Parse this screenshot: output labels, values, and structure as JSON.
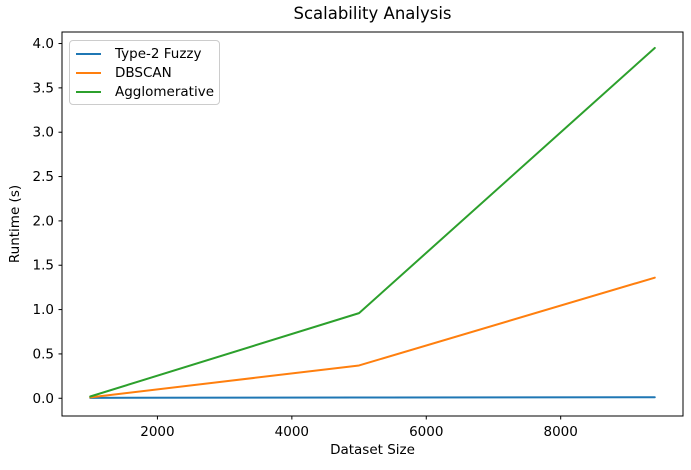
{
  "chart_data": {
    "type": "line",
    "title": "Scalability Analysis",
    "xlabel": "Dataset Size",
    "ylabel": "Runtime (s)",
    "x": [
      1000,
      5000,
      9400
    ],
    "series": [
      {
        "name": "Type-2 Fuzzy",
        "color": "#1f77b4",
        "values": [
          0.005,
          0.008,
          0.012
        ]
      },
      {
        "name": "DBSCAN",
        "color": "#ff7f0e",
        "values": [
          0.01,
          0.37,
          1.36
        ]
      },
      {
        "name": "Agglomerative",
        "color": "#2ca02c",
        "values": [
          0.02,
          0.96,
          3.95
        ]
      }
    ],
    "xticks": [
      2000,
      4000,
      6000,
      8000
    ],
    "yticks": [
      0.0,
      0.5,
      1.0,
      1.5,
      2.0,
      2.5,
      3.0,
      3.5,
      4.0
    ],
    "xlim": [
      580,
      9820
    ],
    "ylim": [
      -0.2,
      4.13
    ],
    "legend_position": "upper left",
    "grid": false,
    "colors": {
      "spine": "#000000",
      "background": "#ffffff",
      "legend_border": "#cccccc"
    }
  }
}
